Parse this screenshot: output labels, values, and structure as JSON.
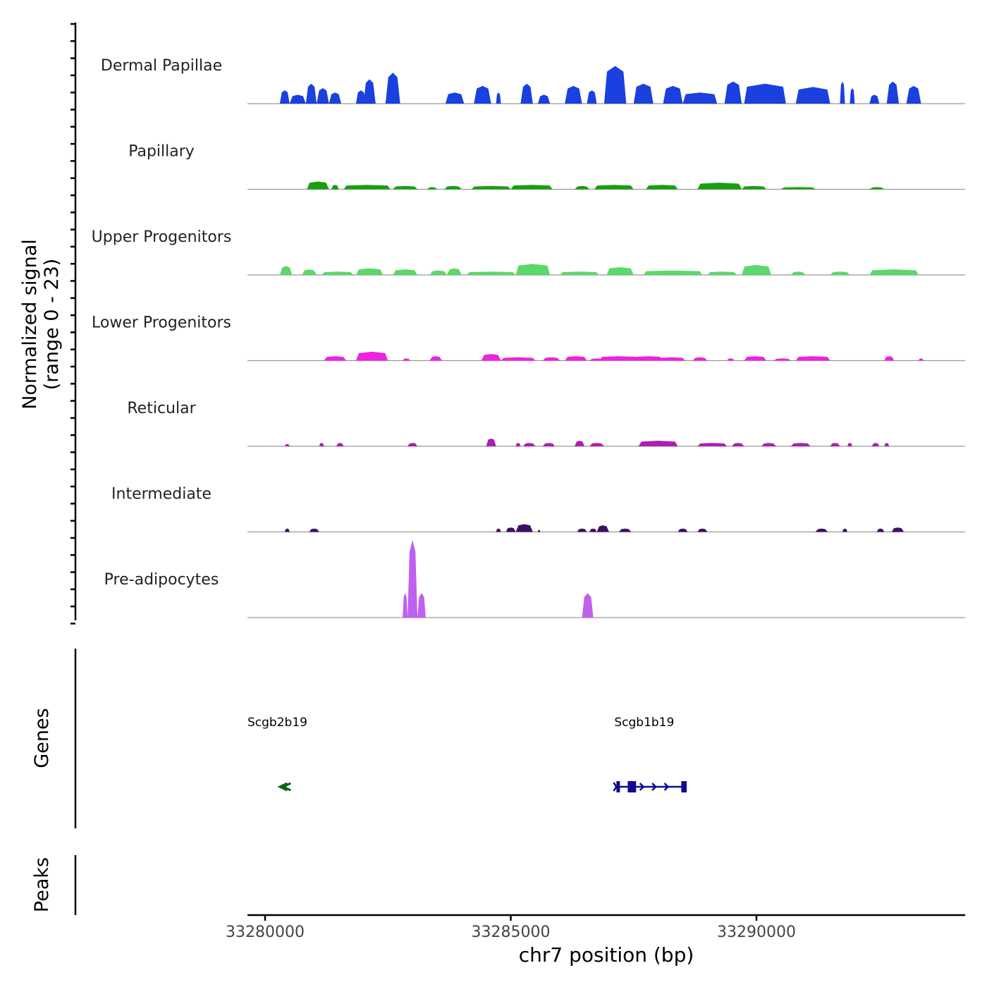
{
  "chart_data": {
    "type": "area",
    "title": "",
    "region": {
      "chrom": "chr7",
      "start": 33279600,
      "end": 33294300
    },
    "xlabel": "chr7 position (bp)",
    "x_ticks": [
      33280000,
      33285000,
      33290000
    ],
    "ylabel_line1": "Normalized signal",
    "ylabel_line2": "(range 0 - 23)",
    "ylim": [
      0,
      23
    ],
    "coverage_tracks": [
      {
        "name": "Dermal Papillae",
        "color": "#1a40e0",
        "peaks": [
          [
            33280300,
            33280500,
            12
          ],
          [
            33280500,
            33280830,
            8
          ],
          [
            33280830,
            33281050,
            18
          ],
          [
            33281050,
            33281300,
            14
          ],
          [
            33281300,
            33281550,
            10
          ],
          [
            33281850,
            33282050,
            12
          ],
          [
            33282000,
            33282250,
            22
          ],
          [
            33282450,
            33282750,
            28
          ],
          [
            33283670,
            33284050,
            10
          ],
          [
            33284250,
            33284600,
            16
          ],
          [
            33284700,
            33284800,
            10
          ],
          [
            33285200,
            33285450,
            18
          ],
          [
            33285550,
            33285800,
            8
          ],
          [
            33286100,
            33286450,
            16
          ],
          [
            33286550,
            33286750,
            12
          ],
          [
            33286900,
            33287350,
            34
          ],
          [
            33287500,
            33287900,
            18
          ],
          [
            33288100,
            33288500,
            16
          ],
          [
            33288500,
            33289200,
            10
          ],
          [
            33289350,
            33289700,
            20
          ],
          [
            33289750,
            33290600,
            18
          ],
          [
            33290800,
            33291500,
            15
          ],
          [
            33291700,
            33291800,
            20
          ],
          [
            33291900,
            33292000,
            14
          ],
          [
            33292300,
            33292500,
            8
          ],
          [
            33292650,
            33292900,
            20
          ],
          [
            33293050,
            33293350,
            16
          ]
        ]
      },
      {
        "name": "Papillary",
        "color": "#16a010",
        "peaks": [
          [
            33280850,
            33281300,
            7
          ],
          [
            33281350,
            33281500,
            4
          ],
          [
            33281600,
            33282550,
            4
          ],
          [
            33282600,
            33283100,
            3
          ],
          [
            33283300,
            33283500,
            2
          ],
          [
            33283650,
            33284000,
            3
          ],
          [
            33284200,
            33285000,
            3
          ],
          [
            33285000,
            33285850,
            4
          ],
          [
            33286300,
            33286600,
            3
          ],
          [
            33286700,
            33287500,
            4
          ],
          [
            33287750,
            33288400,
            4
          ],
          [
            33288800,
            33289700,
            6
          ],
          [
            33289700,
            33290200,
            3
          ],
          [
            33290500,
            33291200,
            2
          ],
          [
            33292300,
            33292600,
            2
          ]
        ]
      },
      {
        "name": "Upper Progenitors",
        "color": "#5ad86a",
        "peaks": [
          [
            33280300,
            33280550,
            8
          ],
          [
            33280750,
            33281050,
            5
          ],
          [
            33281150,
            33281800,
            3
          ],
          [
            33281850,
            33282400,
            6
          ],
          [
            33282600,
            33283100,
            5
          ],
          [
            33283350,
            33283700,
            4
          ],
          [
            33283700,
            33284000,
            6
          ],
          [
            33284100,
            33285100,
            3
          ],
          [
            33285100,
            33285800,
            10
          ],
          [
            33286000,
            33286800,
            3
          ],
          [
            33286950,
            33287500,
            7
          ],
          [
            33287700,
            33288900,
            4
          ],
          [
            33289000,
            33289600,
            3
          ],
          [
            33289700,
            33290300,
            9
          ],
          [
            33290700,
            33291000,
            3
          ],
          [
            33291500,
            33291900,
            3
          ],
          [
            33292300,
            33293300,
            5
          ]
        ]
      },
      {
        "name": "Lower Progenitors",
        "color": "#ee22e0",
        "peaks": [
          [
            33281200,
            33281650,
            4
          ],
          [
            33281850,
            33282500,
            8
          ],
          [
            33282800,
            33282950,
            2
          ],
          [
            33283350,
            33283600,
            4
          ],
          [
            33284400,
            33284800,
            6
          ],
          [
            33284800,
            33285500,
            3
          ],
          [
            33285650,
            33286000,
            3
          ],
          [
            33286100,
            33286550,
            4
          ],
          [
            33286600,
            33286900,
            2
          ],
          [
            33286800,
            33287600,
            4
          ],
          [
            33287500,
            33288100,
            4
          ],
          [
            33288000,
            33288550,
            3
          ],
          [
            33288700,
            33289000,
            3
          ],
          [
            33289400,
            33289550,
            2
          ],
          [
            33289750,
            33290200,
            4
          ],
          [
            33290350,
            33290700,
            2
          ],
          [
            33290800,
            33291500,
            4
          ],
          [
            33292600,
            33292800,
            4
          ],
          [
            33293300,
            33293400,
            2
          ]
        ]
      },
      {
        "name": "Reticular",
        "color": "#b21cb2",
        "peaks": [
          [
            33280400,
            33280500,
            2
          ],
          [
            33281100,
            33281200,
            3
          ],
          [
            33281450,
            33281600,
            3
          ],
          [
            33282900,
            33283100,
            3
          ],
          [
            33284500,
            33284700,
            7
          ],
          [
            33285100,
            33285200,
            3
          ],
          [
            33285250,
            33285500,
            3
          ],
          [
            33285650,
            33285900,
            3
          ],
          [
            33286300,
            33286500,
            5
          ],
          [
            33286600,
            33286900,
            3
          ],
          [
            33287600,
            33288400,
            5
          ],
          [
            33288800,
            33289400,
            3
          ],
          [
            33289500,
            33289750,
            3
          ],
          [
            33290100,
            33290400,
            3
          ],
          [
            33290700,
            33291100,
            3
          ],
          [
            33291500,
            33291700,
            3
          ],
          [
            33291850,
            33291950,
            3
          ],
          [
            33292350,
            33292500,
            3
          ],
          [
            33292600,
            33292700,
            3
          ]
        ]
      },
      {
        "name": "Intermediate",
        "color": "#3f0f63",
        "peaks": [
          [
            33280400,
            33280500,
            3
          ],
          [
            33280900,
            33281100,
            3
          ],
          [
            33284700,
            33284800,
            3
          ],
          [
            33284900,
            33285100,
            4
          ],
          [
            33285100,
            33285450,
            7
          ],
          [
            33285550,
            33285600,
            2
          ],
          [
            33286350,
            33286550,
            3
          ],
          [
            33286600,
            33286750,
            3
          ],
          [
            33286750,
            33287000,
            6
          ],
          [
            33287200,
            33287450,
            3
          ],
          [
            33288400,
            33288600,
            3
          ],
          [
            33288800,
            33289000,
            3
          ],
          [
            33291200,
            33291450,
            3
          ],
          [
            33291750,
            33291850,
            3
          ],
          [
            33292450,
            33292600,
            3
          ],
          [
            33292750,
            33293000,
            4
          ]
        ]
      },
      {
        "name": "Pre-adipocytes",
        "color": "#c060f0",
        "peaks": [
          [
            33282800,
            33282900,
            22
          ],
          [
            33282900,
            33283100,
            70
          ],
          [
            33283100,
            33283270,
            22
          ],
          [
            33286450,
            33286680,
            22
          ]
        ]
      }
    ],
    "genes_track": {
      "label": "Genes",
      "genes": [
        {
          "name": "Scgb2b19",
          "start": 33280300,
          "end": 33280450,
          "strand": "-",
          "color": "#0a6410"
        },
        {
          "name": "Scgb1b19",
          "start": 33287150,
          "end": 33288580,
          "strand": "+",
          "color": "#100a90"
        }
      ]
    },
    "peaks_track": {
      "label": "Peaks",
      "peaks": []
    }
  }
}
